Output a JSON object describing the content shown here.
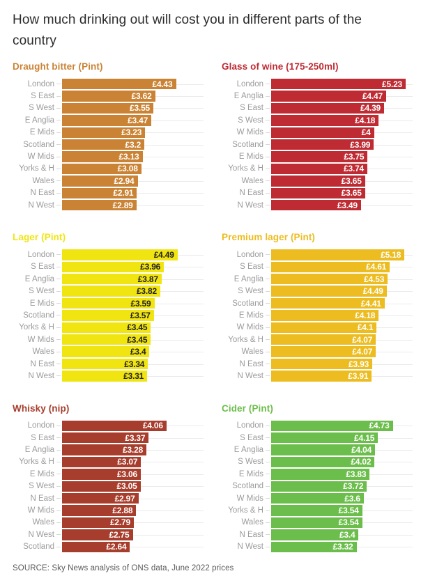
{
  "page": {
    "title": "How much drinking out will cost you in different parts of the country",
    "source": "SOURCE: Sky News analysis of ONS data, June 2022 prices",
    "background_color": "#ffffff",
    "label_color": "#9b9b9b",
    "gridline_color": "#ebebeb"
  },
  "chart_data": [
    {
      "type": "bar",
      "title": "Draught bitter (Pint)",
      "orientation": "horizontal",
      "color": "#ca8334",
      "value_text_color": "#ffffff",
      "xlim": [
        0,
        5.5
      ],
      "grid": "row-lines",
      "categories": [
        "London",
        "S East",
        "S West",
        "E Anglia",
        "E Mids",
        "Scotland",
        "W Mids",
        "Yorks & H",
        "Wales",
        "N East",
        "N West"
      ],
      "values": [
        4.43,
        3.62,
        3.55,
        3.47,
        3.23,
        3.2,
        3.13,
        3.08,
        2.94,
        2.91,
        2.89
      ],
      "value_labels": [
        "£4.43",
        "£3.62",
        "£3.55",
        "£3.47",
        "£3.23",
        "£3.2",
        "£3.13",
        "£3.08",
        "£2.94",
        "£2.91",
        "£2.89"
      ]
    },
    {
      "type": "bar",
      "title": "Glass of wine (175-250ml)",
      "orientation": "horizontal",
      "color": "#bf2b33",
      "value_text_color": "#ffffff",
      "xlim": [
        0,
        5.5
      ],
      "grid": "row-lines",
      "categories": [
        "London",
        "E Anglia",
        "S East",
        "S West",
        "W Mids",
        "Scotland",
        "E Mids",
        "Yorks & H",
        "Wales",
        "N East",
        "N West"
      ],
      "values": [
        5.23,
        4.47,
        4.39,
        4.18,
        4,
        3.99,
        3.75,
        3.74,
        3.65,
        3.65,
        3.49
      ],
      "value_labels": [
        "£5.23",
        "£4.47",
        "£4.39",
        "£4.18",
        "£4",
        "£3.99",
        "£3.75",
        "£3.74",
        "£3.65",
        "£3.65",
        "£3.49"
      ]
    },
    {
      "type": "bar",
      "title": "Lager (Pint)",
      "orientation": "horizontal",
      "color": "#f1e511",
      "value_text_color": "#222120",
      "xlim": [
        0,
        5.5
      ],
      "grid": "row-lines",
      "categories": [
        "London",
        "S East",
        "E Anglia",
        "S West",
        "E Mids",
        "Scotland",
        "Yorks & H",
        "W Mids",
        "Wales",
        "N East",
        "N West"
      ],
      "values": [
        4.49,
        3.96,
        3.87,
        3.82,
        3.59,
        3.57,
        3.45,
        3.45,
        3.4,
        3.34,
        3.31
      ],
      "value_labels": [
        "£4.49",
        "£3.96",
        "£3.87",
        "£3.82",
        "£3.59",
        "£3.57",
        "£3.45",
        "£3.45",
        "£3.4",
        "£3.34",
        "£3.31"
      ]
    },
    {
      "type": "bar",
      "title": "Premium lager (Pint)",
      "orientation": "horizontal",
      "color": "#ecbc20",
      "value_text_color": "#ffffff",
      "xlim": [
        0,
        5.5
      ],
      "grid": "row-lines",
      "categories": [
        "London",
        "S East",
        "E Anglia",
        "S West",
        "Scotland",
        "E Mids",
        "W Mids",
        "Yorks & H",
        "Wales",
        "N East",
        "N West"
      ],
      "values": [
        5.18,
        4.61,
        4.53,
        4.49,
        4.41,
        4.18,
        4.1,
        4.07,
        4.07,
        3.93,
        3.91
      ],
      "value_labels": [
        "£5.18",
        "£4.61",
        "£4.53",
        "£4.49",
        "£4.41",
        "£4.18",
        "£4.1",
        "£4.07",
        "£4.07",
        "£3.93",
        "£3.91"
      ]
    },
    {
      "type": "bar",
      "title": "Whisky (nip)",
      "orientation": "horizontal",
      "color": "#a73d2c",
      "value_text_color": "#ffffff",
      "xlim": [
        0,
        5.5
      ],
      "grid": "row-lines",
      "categories": [
        "London",
        "S East",
        "E Anglia",
        "Yorks & H",
        "E Mids",
        "S West",
        "N East",
        "W Mids",
        "Wales",
        "N West",
        "Scotland"
      ],
      "values": [
        4.06,
        3.37,
        3.28,
        3.07,
        3.06,
        3.05,
        2.97,
        2.88,
        2.79,
        2.75,
        2.64
      ],
      "value_labels": [
        "£4.06",
        "£3.37",
        "£3.28",
        "£3.07",
        "£3.06",
        "£3.05",
        "£2.97",
        "£2.88",
        "£2.79",
        "£2.75",
        "£2.64"
      ]
    },
    {
      "type": "bar",
      "title": "Cider (Pint)",
      "orientation": "horizontal",
      "color": "#6cbe4c",
      "value_text_color": "#ffffff",
      "xlim": [
        0,
        5.5
      ],
      "grid": "row-lines",
      "categories": [
        "London",
        "S East",
        "E Anglia",
        "S West",
        "E Mids",
        "Scotland",
        "W Mids",
        "Yorks & H",
        "Wales",
        "N East",
        "N West"
      ],
      "values": [
        4.73,
        4.15,
        4.04,
        4.02,
        3.83,
        3.72,
        3.6,
        3.54,
        3.54,
        3.4,
        3.32
      ],
      "value_labels": [
        "£4.73",
        "£4.15",
        "£4.04",
        "£4.02",
        "£3.83",
        "£3.72",
        "£3.6",
        "£3.54",
        "£3.54",
        "£3.4",
        "£3.32"
      ]
    }
  ]
}
